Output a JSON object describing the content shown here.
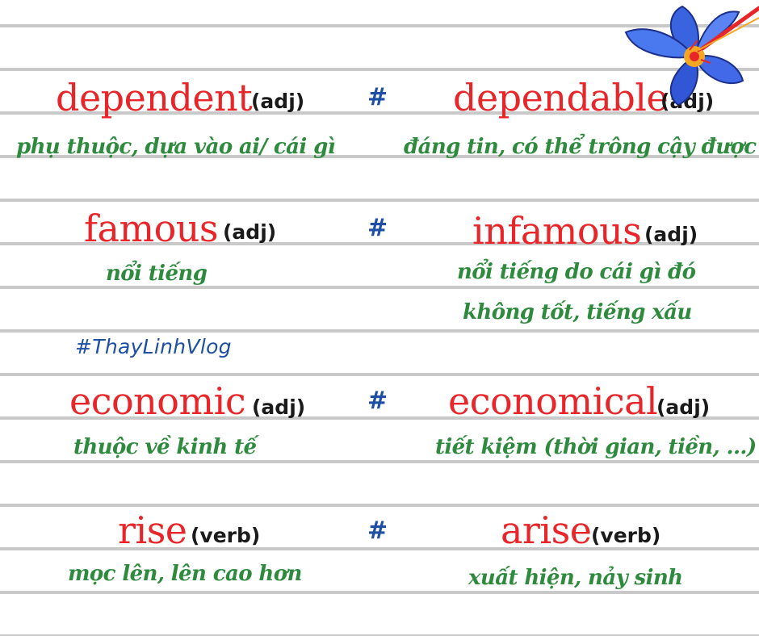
{
  "pairs": [
    {
      "left": {
        "word": "dependent",
        "pos": "(adj)",
        "meaning": [
          "phụ thuộc, dựa vào ai/ cái gì"
        ]
      },
      "sep": "#",
      "right": {
        "word": "dependable",
        "pos": "(adj)",
        "meaning": [
          "đáng tin, có thể trông cậy được"
        ]
      }
    },
    {
      "left": {
        "word": "famous",
        "pos": "(adj)",
        "meaning": [
          "nổi tiếng"
        ]
      },
      "sep": "#",
      "right": {
        "word": "infamous",
        "pos": "(adj)",
        "meaning": [
          "nổi tiếng do cái gì đó",
          "không tốt, tiếng xấu"
        ]
      }
    },
    {
      "left": {
        "word": "economic",
        "pos": "(adj)",
        "meaning": [
          "thuộc về kinh tế"
        ]
      },
      "sep": "#",
      "right": {
        "word": "economical",
        "pos": "(adj)",
        "meaning": [
          "tiết kiệm (thời gian, tiền, ...)"
        ]
      }
    },
    {
      "left": {
        "word": "rise",
        "pos": "(verb)",
        "meaning": [
          "mọc lên, lên cao hơn"
        ]
      },
      "sep": "#",
      "right": {
        "word": "arise",
        "pos": "(verb)",
        "meaning": [
          "xuất hiện, nảy sinh"
        ]
      }
    }
  ],
  "hashtag": "#ThayLinhVlog",
  "colors": {
    "word": "#e8262a",
    "pos": "#1a1a1a",
    "separator": "#1e4fa3",
    "meaning": "#2e8b3e",
    "hashtag": "#1e4fa3",
    "ruled_line": "#c9c9c9"
  },
  "decoration": {
    "icon": "flower-icon"
  }
}
